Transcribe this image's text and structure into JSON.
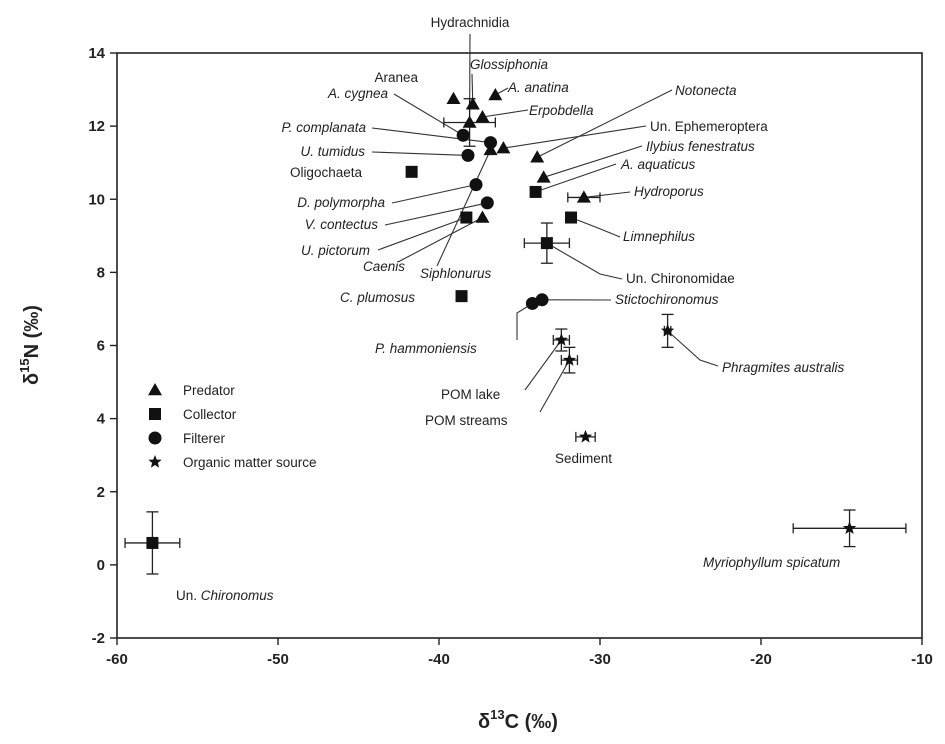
{
  "chart_data": {
    "type": "scatter",
    "xlabel": {
      "base": "δ",
      "sup": "13",
      "rest": "C (‰)"
    },
    "ylabel": {
      "base": "δ",
      "sup": "15",
      "rest": "N (‰)"
    },
    "xlim": [
      -60,
      -10
    ],
    "ylim": [
      -2,
      14
    ],
    "x_ticks": [
      -60,
      -50,
      -40,
      -30,
      -20,
      -10
    ],
    "y_ticks": [
      -2,
      0,
      2,
      4,
      6,
      8,
      10,
      12,
      14
    ],
    "grid": false,
    "legend": {
      "position": "left",
      "entries": [
        {
          "label": "Predator",
          "marker": "triangle"
        },
        {
          "label": "Collector",
          "marker": "square"
        },
        {
          "label": "Filterer",
          "marker": "circle"
        },
        {
          "label": "Organic matter source",
          "marker": "star"
        }
      ]
    },
    "points": [
      {
        "label": "Hydrachnidia",
        "group": "Predator",
        "x": -38.1,
        "y": 12.1,
        "xerr": 1.6,
        "yerr": 0.65
      },
      {
        "label": "Aranea",
        "group": "Predator",
        "x": -39.1,
        "y": 12.75
      },
      {
        "label": "Glossiphonia",
        "group": "Predator",
        "x": -37.9,
        "y": 12.6
      },
      {
        "label": "A. cygnea",
        "group": "Filterer",
        "x": -38.5,
        "y": 11.75
      },
      {
        "label": "A. anatina",
        "group": "Predator",
        "x": -36.5,
        "y": 12.85
      },
      {
        "label": "Erpobdella",
        "group": "Predator",
        "x": -37.3,
        "y": 12.25
      },
      {
        "label": "P. complanata",
        "group": "Filterer",
        "x": -36.8,
        "y": 11.55
      },
      {
        "label": "U. tumidus",
        "group": "Filterer",
        "x": -38.2,
        "y": 11.2
      },
      {
        "label": "Notonecta",
        "group": "Predator",
        "x": -33.9,
        "y": 11.15
      },
      {
        "label": "Un. Ephemeroptera",
        "group": "Predator",
        "x": -36.0,
        "y": 11.4
      },
      {
        "label": "Ilybius fenestratus",
        "group": "Predator",
        "x": -33.5,
        "y": 10.6
      },
      {
        "label": "A. aquaticus",
        "group": "Collector",
        "x": -34.0,
        "y": 10.2
      },
      {
        "label": "Oligochaeta",
        "group": "Collector",
        "x": -41.7,
        "y": 10.75
      },
      {
        "label": "Hydroporus",
        "group": "Predator",
        "x": -31.0,
        "y": 10.05,
        "xerr": 1.0
      },
      {
        "label": "D. polymorpha",
        "group": "Filterer",
        "x": -37.7,
        "y": 10.4
      },
      {
        "label": "V. contectus",
        "group": "Filterer",
        "x": -37.0,
        "y": 9.9
      },
      {
        "label": "U. pictorum",
        "group": "Collector",
        "x": -38.3,
        "y": 9.5
      },
      {
        "label": "Caenis",
        "group": "Predator",
        "x": -37.3,
        "y": 9.5
      },
      {
        "label": "Siphlonurus",
        "group": "Predator",
        "x": -36.8,
        "y": 11.35
      },
      {
        "label": "Limnephilus",
        "group": "Collector",
        "x": -31.8,
        "y": 9.5
      },
      {
        "label": "Un. Chironomidae",
        "group": "Collector",
        "x": -33.3,
        "y": 8.8,
        "xerr": 1.4,
        "yerr": 0.55
      },
      {
        "label": "C. plumosus",
        "group": "Collector",
        "x": -38.6,
        "y": 7.35
      },
      {
        "label": "Stictochironomus",
        "group": "Filterer",
        "x": -33.6,
        "y": 7.25
      },
      {
        "label": "P. hammoniensis",
        "group": "Filterer",
        "x": -34.2,
        "y": 7.15
      },
      {
        "label": "POM lake",
        "group": "Organic matter source",
        "x": -32.4,
        "y": 6.15,
        "xerr": 0.5,
        "yerr": 0.3
      },
      {
        "label": "POM streams",
        "group": "Organic matter source",
        "x": -31.9,
        "y": 5.6,
        "xerr": 0.5,
        "yerr": 0.35
      },
      {
        "label": "Phragmites australis",
        "group": "Organic matter source",
        "x": -25.8,
        "y": 6.4,
        "xerr": 0.2,
        "yerr": 0.45
      },
      {
        "label": "Sediment",
        "group": "Organic matter source",
        "x": -30.9,
        "y": 3.5,
        "xerr": 0.6
      },
      {
        "label": "Myriophyllum spicatum",
        "group": "Organic matter source",
        "x": -14.5,
        "y": 1.0,
        "xerr": 3.5,
        "yerr": 0.5
      },
      {
        "label": "Un. Chironomus",
        "group": "Collector",
        "x": -57.8,
        "y": 0.6,
        "xerr": 1.7,
        "yerr": 0.85
      }
    ],
    "annotations": [
      {
        "text": "Hydrachnidia",
        "italic": false,
        "point": "Hydrachnidia"
      },
      {
        "text": "Aranea",
        "italic": false,
        "point": "Aranea"
      },
      {
        "text": "Glossiphonia",
        "italic": true,
        "point": "Glossiphonia"
      },
      {
        "text": "A. cygnea",
        "italic": true,
        "point": "A. cygnea"
      },
      {
        "text": "A. anatina",
        "italic": true,
        "point": "A. anatina"
      },
      {
        "text": "Erpobdella",
        "italic": true,
        "point": "Erpobdella"
      },
      {
        "text": "Notonecta",
        "italic": true,
        "point": "Notonecta"
      },
      {
        "text": "P. complanata",
        "italic": true,
        "point": "P. complanata"
      },
      {
        "text": "Un. Ephemeroptera",
        "italic": false,
        "point": "Un. Ephemeroptera"
      },
      {
        "text": "U. tumidus",
        "italic": true,
        "point": "U. tumidus"
      },
      {
        "text": "Ilybius fenestratus",
        "italic": true,
        "point": "Ilybius fenestratus"
      },
      {
        "text": "Oligochaeta",
        "italic": false,
        "point": "Oligochaeta"
      },
      {
        "text": "A. aquaticus",
        "italic": true,
        "point": "A. aquaticus"
      },
      {
        "text": "Hydroporus",
        "italic": true,
        "point": "Hydroporus"
      },
      {
        "text": "D. polymorpha",
        "italic": true,
        "point": "D. polymorpha"
      },
      {
        "text": "V. contectus",
        "italic": true,
        "point": "V. contectus"
      },
      {
        "text": "U. pictorum",
        "italic": true,
        "point": "U. pictorum"
      },
      {
        "text": "Limnephilus",
        "italic": true,
        "point": "Limnephilus"
      },
      {
        "text": "Caenis",
        "italic": true,
        "point": "Caenis"
      },
      {
        "text": "Siphlonurus",
        "italic": true,
        "point": "Siphlonurus"
      },
      {
        "text": "Un. Chironomidae",
        "italic": false,
        "point": "Un. Chironomidae"
      },
      {
        "text": "C. plumosus",
        "italic": true,
        "point": "C. plumosus"
      },
      {
        "text": "Stictochironomus",
        "italic": true,
        "point": "Stictochironomus"
      },
      {
        "text": "P. hammoniensis",
        "italic": true,
        "point": "P. hammoniensis"
      },
      {
        "text": "Phragmites australis",
        "italic": true,
        "point": "Phragmites australis"
      },
      {
        "text": "POM lake",
        "italic": false,
        "point": "POM lake"
      },
      {
        "text": "POM streams",
        "italic": false,
        "point": "POM streams"
      },
      {
        "text": "Sediment",
        "italic": false,
        "point": "Sediment"
      },
      {
        "text": "Myriophyllum spicatum",
        "italic": true,
        "point": "Myriophyllum spicatum"
      },
      {
        "text": "Un. Chironomus",
        "italic": false,
        "point": "Un. Chironomus",
        "italic_part": "Chironomus"
      }
    ]
  }
}
